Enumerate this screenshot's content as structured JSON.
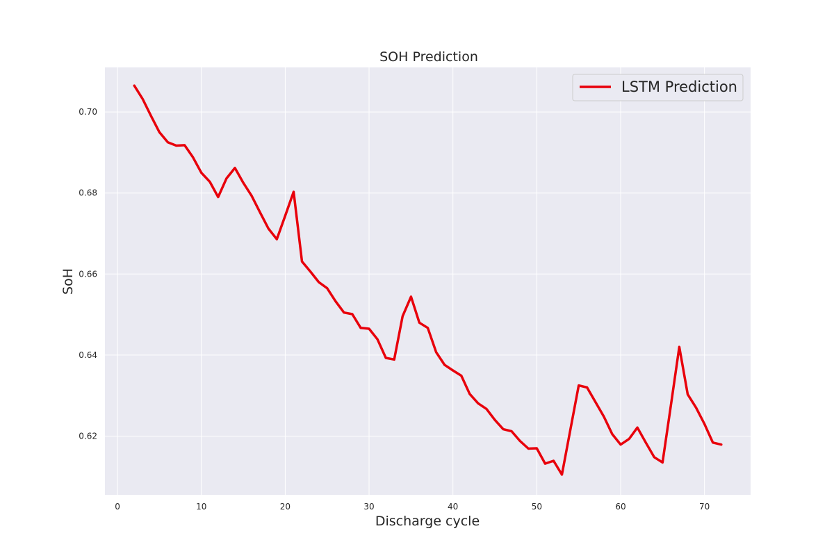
{
  "chart_data": {
    "type": "line",
    "title": "SOH Prediction",
    "xlabel": "Discharge cycle",
    "ylabel": "SoH",
    "xlim": [
      -1.5,
      75.5
    ],
    "ylim": [
      0.6055,
      0.711
    ],
    "x_ticks": [
      0,
      10,
      20,
      30,
      40,
      50,
      60,
      70
    ],
    "y_ticks": [
      0.62,
      0.64,
      0.66,
      0.68,
      0.7
    ],
    "y_tick_labels": [
      "0.62",
      "0.64",
      "0.66",
      "0.68",
      "0.70"
    ],
    "grid": true,
    "legend_position": "top-right",
    "series": [
      {
        "name": "LSTM Prediction",
        "color": "#e8000b",
        "x": [
          2,
          3,
          4,
          5,
          6,
          7,
          8,
          9,
          10,
          11,
          12,
          13,
          14,
          15,
          16,
          17,
          18,
          19,
          20,
          21,
          22,
          23,
          24,
          25,
          26,
          27,
          28,
          29,
          30,
          31,
          32,
          33,
          34,
          35,
          36,
          37,
          38,
          39,
          40,
          41,
          42,
          43,
          44,
          45,
          46,
          47,
          48,
          49,
          50,
          51,
          52,
          53,
          54,
          55,
          56,
          57,
          58,
          59,
          60,
          61,
          62,
          63,
          64,
          65,
          66,
          67,
          68,
          69,
          70,
          71,
          72
        ],
        "y": [
          0.7065,
          0.7032,
          0.699,
          0.695,
          0.6925,
          0.6917,
          0.6918,
          0.6888,
          0.685,
          0.6828,
          0.679,
          0.6836,
          0.6862,
          0.6825,
          0.6793,
          0.6752,
          0.6712,
          0.6686,
          0.6744,
          0.6803,
          0.6631,
          0.6606,
          0.658,
          0.6565,
          0.6533,
          0.6505,
          0.6501,
          0.6467,
          0.6465,
          0.6439,
          0.6393,
          0.6389,
          0.6496,
          0.6544,
          0.648,
          0.6467,
          0.6407,
          0.6376,
          0.6362,
          0.6349,
          0.6304,
          0.6281,
          0.6267,
          0.624,
          0.6217,
          0.6212,
          0.6188,
          0.6169,
          0.617,
          0.6132,
          0.6139,
          0.6105,
          0.6215,
          0.6325,
          0.632,
          0.6284,
          0.6248,
          0.6205,
          0.6179,
          0.6193,
          0.6221,
          0.6184,
          0.6148,
          0.6135,
          0.6277,
          0.642,
          0.6303,
          0.627,
          0.623,
          0.6184,
          0.6179
        ]
      }
    ]
  }
}
